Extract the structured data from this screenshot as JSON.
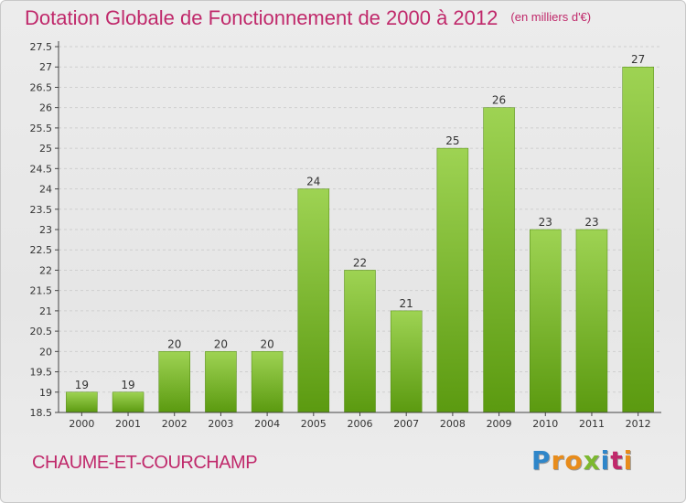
{
  "title": "Dotation Globale de Fonctionnement de 2000 à 2012",
  "subtitle": "(en milliers d'€)",
  "commune": "CHAUME-ET-COURCHAMP",
  "logo": {
    "text": "Proxiti",
    "letters": [
      "P",
      "r",
      "o",
      "x",
      "i",
      "t",
      "i"
    ],
    "colors": [
      "#2f86c9",
      "#e88c1b",
      "#e88c1b",
      "#7cb82f",
      "#2f86c9",
      "#c0296b",
      "#e88c1b"
    ]
  },
  "colors": {
    "title": "#c0296b",
    "bar_top": "#9ed353",
    "bar_bottom": "#5b9a10",
    "axis": "#444444",
    "grid": "#cfcfcf"
  },
  "chart_data": {
    "type": "bar",
    "categories": [
      "2000",
      "2001",
      "2002",
      "2003",
      "2004",
      "2005",
      "2006",
      "2007",
      "2008",
      "2009",
      "2010",
      "2011",
      "2012"
    ],
    "values": [
      19,
      19,
      20,
      20,
      20,
      24,
      22,
      21,
      25,
      26,
      23,
      23,
      27
    ],
    "value_labels": [
      "19",
      "19",
      "20",
      "20",
      "20",
      "24",
      "22",
      "21",
      "25",
      "26",
      "23",
      "23",
      "27"
    ],
    "ylim": [
      18.5,
      27.5
    ],
    "yticks": [
      18.5,
      19,
      19.5,
      20,
      20.5,
      21,
      21.5,
      22,
      22.5,
      23,
      23.5,
      24,
      24.5,
      25,
      25.5,
      26,
      26.5,
      27,
      27.5
    ],
    "ytick_labels": [
      "18.5",
      "19",
      "19.5",
      "20",
      "20.5",
      "21",
      "21.5",
      "22",
      "22.5",
      "23",
      "23.5",
      "24",
      "24.5",
      "25",
      "25.5",
      "26",
      "26.5",
      "27",
      "27.5"
    ],
    "grid": true,
    "xlabel": "",
    "ylabel": ""
  }
}
